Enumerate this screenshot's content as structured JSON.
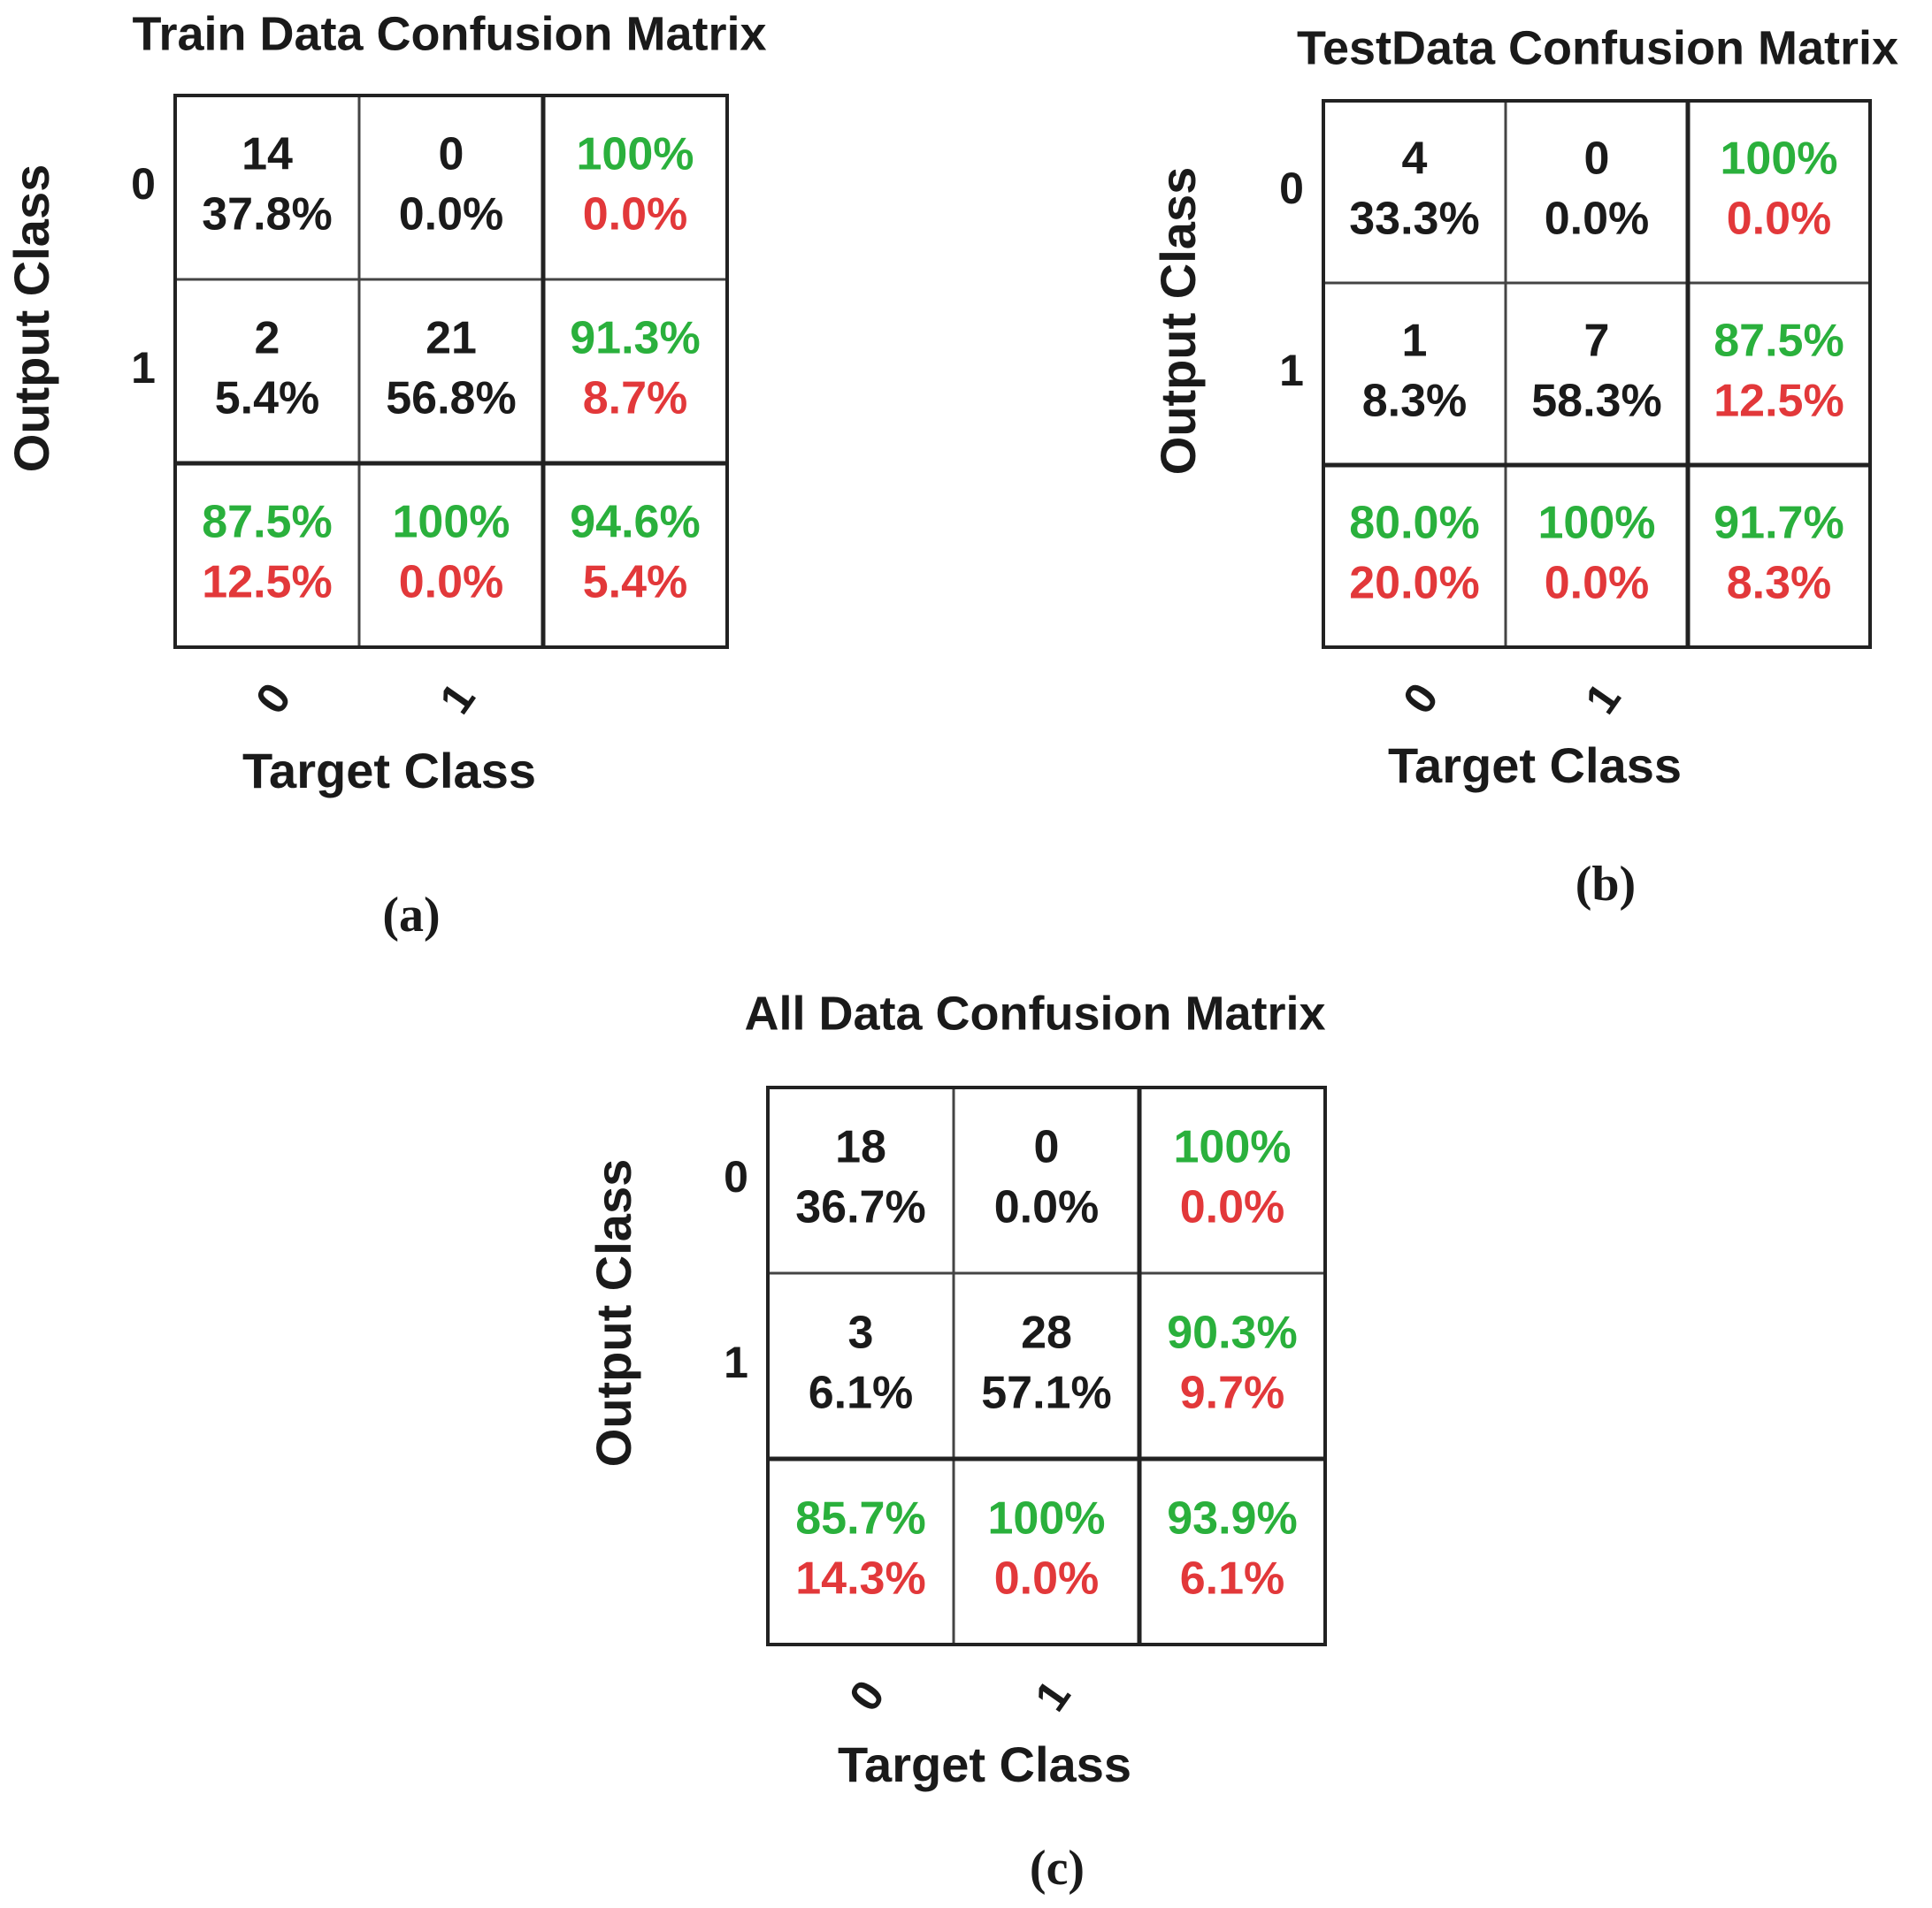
{
  "colors": {
    "text": "#1a1a1a",
    "correct": "#2ab03c",
    "error": "#e2383a",
    "grid": "#444444"
  },
  "chart_data": [
    {
      "type": "table",
      "id": "a",
      "title": "Train Data Confusion Matrix",
      "caption": "(a)",
      "xlabel": "Target Class",
      "ylabel": "Output Class",
      "x_ticks": [
        "0",
        "1"
      ],
      "y_ticks": [
        "0",
        "1"
      ],
      "cells": [
        [
          {
            "count": "14",
            "percent": "37.8%"
          },
          {
            "count": "0",
            "percent": "0.0%"
          },
          {
            "correct": "100%",
            "error": "0.0%"
          }
        ],
        [
          {
            "count": "2",
            "percent": "5.4%"
          },
          {
            "count": "21",
            "percent": "56.8%"
          },
          {
            "correct": "91.3%",
            "error": "8.7%"
          }
        ],
        [
          {
            "correct": "87.5%",
            "error": "12.5%"
          },
          {
            "correct": "100%",
            "error": "0.0%"
          },
          {
            "correct": "94.6%",
            "error": "5.4%"
          }
        ]
      ]
    },
    {
      "type": "table",
      "id": "b",
      "title": "TestData Confusion Matrix",
      "caption": "(b)",
      "xlabel": "Target Class",
      "ylabel": "Output Class",
      "x_ticks": [
        "0",
        "1"
      ],
      "y_ticks": [
        "0",
        "1"
      ],
      "cells": [
        [
          {
            "count": "4",
            "percent": "33.3%"
          },
          {
            "count": "0",
            "percent": "0.0%"
          },
          {
            "correct": "100%",
            "error": "0.0%"
          }
        ],
        [
          {
            "count": "1",
            "percent": "8.3%"
          },
          {
            "count": "7",
            "percent": "58.3%"
          },
          {
            "correct": "87.5%",
            "error": "12.5%"
          }
        ],
        [
          {
            "correct": "80.0%",
            "error": "20.0%"
          },
          {
            "correct": "100%",
            "error": "0.0%"
          },
          {
            "correct": "91.7%",
            "error": "8.3%"
          }
        ]
      ]
    },
    {
      "type": "table",
      "id": "c",
      "title": "All Data Confusion Matrix",
      "caption": "(c)",
      "xlabel": "Target Class",
      "ylabel": "Output Class",
      "x_ticks": [
        "0",
        "1"
      ],
      "y_ticks": [
        "0",
        "1"
      ],
      "cells": [
        [
          {
            "count": "18",
            "percent": "36.7%"
          },
          {
            "count": "0",
            "percent": "0.0%"
          },
          {
            "correct": "100%",
            "error": "0.0%"
          }
        ],
        [
          {
            "count": "3",
            "percent": "6.1%"
          },
          {
            "count": "28",
            "percent": "57.1%"
          },
          {
            "correct": "90.3%",
            "error": "9.7%"
          }
        ],
        [
          {
            "correct": "85.7%",
            "error": "14.3%"
          },
          {
            "correct": "100%",
            "error": "0.0%"
          },
          {
            "correct": "93.9%",
            "error": "6.1%"
          }
        ]
      ]
    }
  ]
}
